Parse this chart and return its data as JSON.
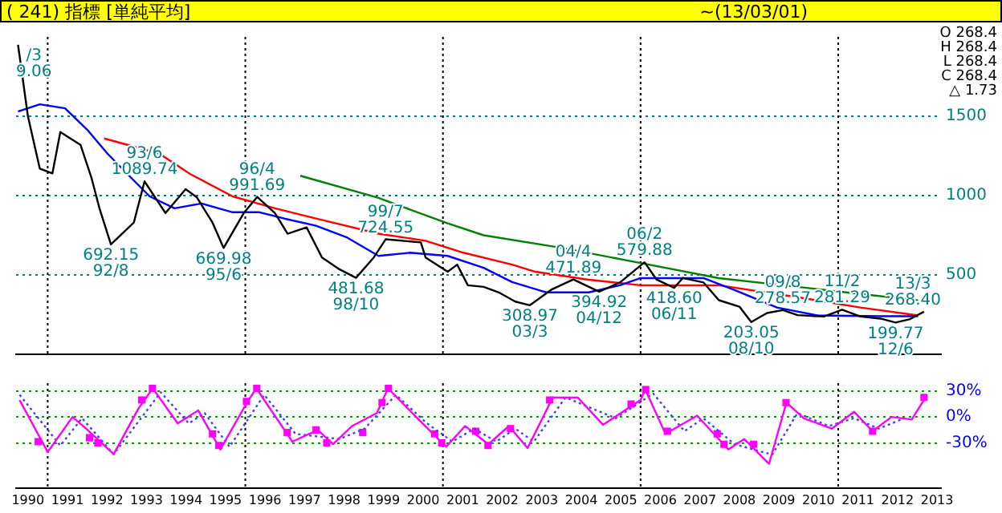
{
  "chart_data": [
    {
      "type": "line",
      "title": "( 241) 指標 [単純平均]",
      "subtitle": "~(13/03/01)",
      "xlim": [
        1990.2,
        2013.6
      ],
      "ylim": [
        0,
        2000
      ],
      "yticks": [
        500,
        1000,
        1500
      ],
      "tick_labels": "y",
      "grid": "y",
      "ref_lines": [
        {
          "axis": "x",
          "value": 1991,
          "color": "#000000",
          "line_style": "dotted"
        },
        {
          "axis": "x",
          "value": 1996,
          "color": "#000000",
          "line_style": "dotted"
        },
        {
          "axis": "x",
          "value": 2001,
          "color": "#000000",
          "line_style": "dotted"
        },
        {
          "axis": "x",
          "value": 2006,
          "color": "#000000",
          "line_style": "dotted"
        },
        {
          "axis": "x",
          "value": 2011,
          "color": "#000000",
          "line_style": "dotted"
        }
      ],
      "annotations": [
        "O 268.4",
        "H 268.4",
        "L 268.4",
        "C 268.4",
        "△ 1.73",
        {
          "text": "/3\n9.06",
          "x": 1990.25,
          "y": 1950
        },
        {
          "text": "692.15\n92/8",
          "x": 1992.6,
          "y": 692.15
        },
        {
          "text": "93/6\n1089.74",
          "x": 1993.45,
          "y": 1089.74
        },
        {
          "text": "669.98\n95/6",
          "x": 1995.45,
          "y": 669.98
        },
        {
          "text": "96/4\n991.69",
          "x": 1996.3,
          "y": 991.69
        },
        {
          "text": "481.68\n98/10",
          "x": 1998.8,
          "y": 481.68
        },
        {
          "text": "99/7\n724.55",
          "x": 1999.55,
          "y": 724.55
        },
        {
          "text": "308.97\n03/3",
          "x": 2003.2,
          "y": 308.97
        },
        {
          "text": "04/4\n471.89",
          "x": 2004.3,
          "y": 471.89
        },
        {
          "text": "394.92\n04/12",
          "x": 2004.95,
          "y": 394.92
        },
        {
          "text": "06/2\n579.88",
          "x": 2006.1,
          "y": 579.88
        },
        {
          "text": "418.60\n06/11",
          "x": 2006.85,
          "y": 418.6
        },
        {
          "text": "203.05\n08/10",
          "x": 2008.8,
          "y": 203.05
        },
        {
          "text": "09/8\n278.57",
          "x": 2009.6,
          "y": 278.57
        },
        {
          "text": "11/2\n281.29",
          "x": 2011.1,
          "y": 281.29
        },
        {
          "text": "199.77\n12/6",
          "x": 2012.45,
          "y": 199.77
        },
        {
          "text": "13/3\n268.40",
          "x": 2013.17,
          "y": 268.4
        }
      ],
      "series": [
        {
          "color": "#000000",
          "x": [
            1990.25,
            1990.5,
            1990.8,
            1991.12,
            1991.32,
            1991.83,
            1992.11,
            1992.31,
            1992.6,
            1993.18,
            1993.45,
            1993.98,
            1994.49,
            1994.77,
            1995.17,
            1995.45,
            1995.96,
            1996.3,
            1996.75,
            1997.07,
            1997.55,
            1997.94,
            1998.35,
            1998.8,
            1999.25,
            1999.55,
            2000.44,
            2000.56,
            2001.12,
            2001.36,
            2001.63,
            2002.03,
            2002.43,
            2002.83,
            2003.2,
            2003.74,
            2004.3,
            2004.95,
            2005.48,
            2006.1,
            2006.4,
            2006.85,
            2007.07,
            2007.59,
            2007.98,
            2008.5,
            2008.8,
            2009.2,
            2009.6,
            2009.97,
            2010.64,
            2011.1,
            2011.56,
            2012.07,
            2012.45,
            2012.8,
            2013.17
          ],
          "values": [
            1950,
            1500,
            1170,
            1140,
            1400,
            1320,
            1110,
            920,
            692.15,
            830,
            1089.74,
            890,
            1040,
            990,
            830,
            669.98,
            890,
            991.69,
            890,
            760,
            800,
            610,
            540,
            481.68,
            610,
            724.55,
            705,
            610,
            520,
            565,
            435,
            425,
            388,
            332,
            308.97,
            407,
            471.89,
            394.92,
            453,
            579.88,
            472,
            418.6,
            481,
            453,
            341,
            300,
            203.05,
            260,
            278.57,
            247,
            238,
            281.29,
            238,
            225,
            199.77,
            220,
            268.4
          ]
        },
        {
          "color": "#0000ff",
          "x": [
            1990.25,
            1990.8,
            1991.44,
            1992.0,
            1992.51,
            1993.02,
            1993.58,
            1994.21,
            1994.89,
            1995.68,
            1996.36,
            1996.99,
            1997.79,
            1998.58,
            1999.37,
            2000.17,
            2001.12,
            2002.03,
            2002.75,
            2003.62,
            2004.69,
            2005.48,
            2006.0,
            2007.59,
            2008.38,
            2009.45,
            2010.48,
            2012.07,
            2013.02
          ],
          "values": [
            1530,
            1575,
            1550,
            1415,
            1265,
            1135,
            995,
            920,
            950,
            895,
            895,
            855,
            810,
            735,
            620,
            640,
            620,
            545,
            455,
            390,
            390,
            435,
            480,
            480,
            405,
            295,
            245,
            240,
            240
          ]
        },
        {
          "color": "#ff0000",
          "x": [
            1992.43,
            1993.82,
            1994.61,
            1995.68,
            1996.75,
            1997.79,
            1999.37,
            2000.56,
            2001.52,
            2002.75,
            2003.34,
            2004.69,
            2006.0,
            2007.98,
            2009.97,
            2011.56,
            2013.02
          ],
          "values": [
            1360,
            1265,
            1135,
            995,
            920,
            855,
            760,
            715,
            640,
            565,
            520,
            470,
            435,
            435,
            360,
            295,
            245
          ]
        },
        {
          "color": "#008000",
          "x": [
            1997.39,
            1999.37,
            2001.12,
            2002.03,
            2004.02,
            2006.0,
            2007.98,
            2009.97,
            2011.56,
            2013.02
          ],
          "values": [
            1125,
            985,
            825,
            750,
            670,
            575,
            480,
            425,
            380,
            340
          ]
        }
      ]
    },
    {
      "type": "line",
      "xlim": [
        1990.2,
        2013.6
      ],
      "ylim": [
        -82,
        39
      ],
      "grid": "y",
      "xticks": [
        {
          "value": 1990.5,
          "label": "1990"
        },
        {
          "value": 1991.5,
          "label": "1991"
        },
        {
          "value": 1992.5,
          "label": "1992"
        },
        {
          "value": 1993.5,
          "label": "1993"
        },
        {
          "value": 1994.5,
          "label": "1994"
        },
        {
          "value": 1995.5,
          "label": "1995"
        },
        {
          "value": 1996.5,
          "label": "1996"
        },
        {
          "value": 1997.5,
          "label": "1997"
        },
        {
          "value": 1998.5,
          "label": "1998"
        },
        {
          "value": 1999.5,
          "label": "1999"
        },
        {
          "value": 2000.5,
          "label": "2000"
        },
        {
          "value": 2001.5,
          "label": "2001"
        },
        {
          "value": 2002.5,
          "label": "2002"
        },
        {
          "value": 2003.5,
          "label": "2003"
        },
        {
          "value": 2004.5,
          "label": "2004"
        },
        {
          "value": 2005.5,
          "label": "2005"
        },
        {
          "value": 2006.5,
          "label": "2006"
        },
        {
          "value": 2007.5,
          "label": "2007"
        },
        {
          "value": 2008.5,
          "label": "2008"
        },
        {
          "value": 2009.5,
          "label": "2009"
        },
        {
          "value": 2010.5,
          "label": "2010"
        },
        {
          "value": 2011.5,
          "label": "2011"
        },
        {
          "value": 2012.5,
          "label": "2012"
        },
        {
          "value": 2013.5,
          "label": "2013"
        }
      ],
      "yticks": [
        {
          "value": 30,
          "label": "30%"
        },
        {
          "value": 0,
          "label": "0%"
        },
        {
          "value": -30,
          "label": "-30%"
        }
      ],
      "ref_lines": [
        {
          "axis": "x",
          "value": 1991,
          "color": "#000000",
          "line_style": "dotted"
        },
        {
          "axis": "x",
          "value": 1996,
          "color": "#000000",
          "line_style": "dotted"
        },
        {
          "axis": "x",
          "value": 2001,
          "color": "#000000",
          "line_style": "dotted"
        },
        {
          "axis": "x",
          "value": 2006,
          "color": "#000000",
          "line_style": "dotted"
        },
        {
          "axis": "x",
          "value": 2011,
          "color": "#000000",
          "line_style": "dotted"
        }
      ],
      "series": [
        {
          "color": "#ff00ff",
          "x": [
            1990.29,
            1991.0,
            1991.63,
            1992.03,
            1992.67,
            1993.3,
            1993.66,
            1994.29,
            1994.81,
            1995.37,
            1996.04,
            1996.28,
            1996.79,
            1997.19,
            1997.83,
            1998.22,
            1998.7,
            1999.33,
            1999.61,
            2000.29,
            2001.08,
            2001.56,
            2002.15,
            2002.67,
            2003.14,
            2003.78,
            2004.41,
            2005.05,
            2006.0,
            2006.12,
            2006.63,
            2007.43,
            2008.22,
            2008.62,
            2009.25,
            2009.69,
            2010.13,
            2010.84,
            2011.4,
            2011.87,
            2012.35,
            2012.86,
            2013.21
          ],
          "values": [
            19.5,
            -40.5,
            0,
            -16,
            -43,
            10,
            33,
            -7.5,
            7.5,
            -37.5,
            16.5,
            33,
            -1.5,
            -28.5,
            -15,
            -31.5,
            -10.5,
            4.5,
            33,
            1.5,
            -34.5,
            -10.5,
            -31.5,
            -10.5,
            -36,
            22.5,
            22.5,
            -9,
            19.5,
            31.5,
            -19.5,
            1.5,
            -37.5,
            -25.5,
            -54,
            16.5,
            -1.5,
            -13.5,
            6,
            -16.5,
            0,
            -3,
            22.5
          ]
        },
        {
          "color": "#4040ff",
          "line_style": "dotted",
          "x": [
            1990.29,
            1991.32,
            1991.87,
            1992.67,
            1993.86,
            1994.57,
            1994.97,
            1995.6,
            1996.48,
            1997.27,
            1998.38,
            1999.02,
            1999.81,
            2000.6,
            2001.24,
            2001.79,
            2002.35,
            2002.83,
            2003.3,
            2004.1,
            2005.37,
            2006.32,
            2007.11,
            2007.59,
            2008.38,
            2009.33,
            2009.97,
            2010.76,
            2011.4,
            2012.03,
            2012.67
          ],
          "values": [
            25.5,
            -33,
            -1.5,
            -43,
            28.5,
            -7.5,
            4.5,
            -34.5,
            25.5,
            -19.5,
            -25.5,
            -13.5,
            25.5,
            -7.5,
            -28.5,
            -13.5,
            -28.5,
            -13.5,
            -28.5,
            22.5,
            -1.5,
            27,
            -16.5,
            -1.5,
            -31.5,
            -43.5,
            4.5,
            -10.5,
            -1.5,
            -13.5,
            -1.5
          ]
        },
        {
          "type": "scatter",
          "marker": "square",
          "color": "#ff00ff",
          "x": [
            1990.76,
            1992.06,
            1992.27,
            1993.38,
            1993.65,
            1995.17,
            1995.33,
            1996.03,
            1996.29,
            1997.06,
            1997.79,
            1998.06,
            1998.97,
            1999.46,
            1999.62,
            2000.79,
            2000.97,
            2001.83,
            2002.14,
            2002.71,
            2003.7,
            2005.76,
            2006.13,
            2006.68,
            2007.94,
            2008.11,
            2008.86,
            2009.68,
            2011.87,
            2013.17
          ],
          "values": [
            -28.5,
            -24,
            -30,
            19.5,
            33,
            -19.5,
            -33,
            18,
            33,
            -18,
            -15,
            -30,
            -18,
            16.5,
            33,
            -19.5,
            -30,
            -16.5,
            -33,
            -13.5,
            19.5,
            15,
            31.5,
            -16.5,
            -19.5,
            -31.5,
            -31.5,
            16.5,
            -16.5,
            22.5
          ]
        }
      ]
    }
  ]
}
